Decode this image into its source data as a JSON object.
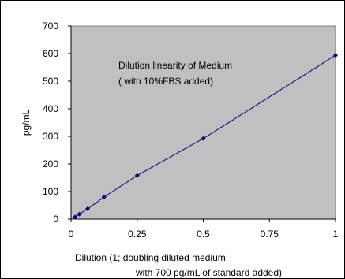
{
  "chart_data": {
    "type": "line",
    "ylabel": "pg/mL",
    "xlabel_lines": [
      "Dilution (1; doubling diluted medium",
      "with 700 pg/mL of standard added)"
    ],
    "annotation_lines": [
      "Dilution linearity of Medium",
      "( with 10%FBS added)"
    ],
    "xlim": [
      0,
      1
    ],
    "ylim": [
      0,
      700
    ],
    "x_ticks": [
      0,
      0.25,
      0.5,
      0.75,
      1
    ],
    "x_tick_labels": [
      "0",
      "0.25",
      "0.5",
      "0.75",
      "1"
    ],
    "y_ticks": [
      0,
      100,
      200,
      300,
      400,
      500,
      600,
      700
    ],
    "y_tick_labels": [
      "0",
      "100",
      "200",
      "300",
      "400",
      "500",
      "600",
      "700"
    ],
    "grid": false,
    "plot_background": "#c0c0c0",
    "series": [
      {
        "color": "#000080",
        "x": [
          0.015625,
          0.03125,
          0.0625,
          0.125,
          0.25,
          0.5,
          1
        ],
        "y": [
          8,
          18,
          37,
          80,
          158,
          292,
          594
        ]
      }
    ]
  }
}
